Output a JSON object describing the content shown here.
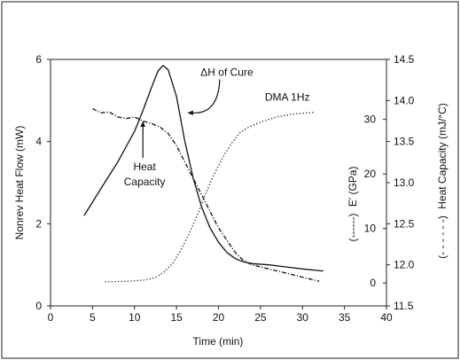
{
  "chart_data": {
    "type": "line",
    "xlabel": "Time (min)",
    "x_ticks": [
      "0",
      "5",
      "10",
      "15",
      "20",
      "25",
      "30",
      "35",
      "40"
    ],
    "xlim": [
      0,
      40
    ],
    "y_left": {
      "label": "Nonrev Heat Flow (mW)",
      "ticks": [
        "0",
        "2",
        "4",
        "6"
      ],
      "lim": [
        0,
        6
      ]
    },
    "y_right_inner": {
      "label_marker": "(------)",
      "label": "E' (GPa)",
      "ticks": [
        "0",
        "10",
        "20",
        "30"
      ],
      "lim": [
        -4.2,
        41
      ]
    },
    "y_right_outer": {
      "label_marker": "(- - - - - -)",
      "label": "Heat Capacity (mJ/°C)",
      "ticks": [
        "11.5",
        "12.0",
        "12.5",
        "13.0",
        "13.5",
        "14.0",
        "14.5"
      ],
      "lim": [
        11.5,
        14.5
      ]
    },
    "grid": false,
    "series": [
      {
        "role": "nonrev-heat-flow",
        "axis": "left",
        "style": "solid",
        "x": [
          4,
          6,
          8,
          10,
          11,
          12,
          12.8,
          13.4,
          14,
          15,
          16,
          17,
          18,
          19,
          20,
          21,
          22,
          23,
          24,
          26,
          28,
          30,
          32.5
        ],
        "y": [
          2.2,
          2.85,
          3.5,
          4.25,
          4.75,
          5.3,
          5.72,
          5.85,
          5.75,
          5.1,
          4.0,
          3.1,
          2.4,
          1.9,
          1.55,
          1.3,
          1.15,
          1.07,
          1.03,
          1.0,
          0.95,
          0.9,
          0.85
        ]
      },
      {
        "role": "dma-storage-modulus",
        "axis": "right_inner",
        "style": "dotted",
        "x": [
          6.5,
          9,
          11,
          12.5,
          13.5,
          14.5,
          15.5,
          16.5,
          17.5,
          18.5,
          19.5,
          20.5,
          21.5,
          22.5,
          23.5,
          25,
          27,
          29,
          31.5
        ],
        "y": [
          0.2,
          0.3,
          0.5,
          1.0,
          2.0,
          3.5,
          6.0,
          9.0,
          12.5,
          16.5,
          20.0,
          23.0,
          25.5,
          27.5,
          28.5,
          29.5,
          30.5,
          31.0,
          31.3
        ]
      },
      {
        "role": "heat-capacity",
        "axis": "right_outer",
        "style": "dash-dot",
        "x": [
          5,
          6,
          7,
          8,
          9,
          10,
          11,
          12,
          13,
          14,
          15,
          16,
          17,
          18,
          19,
          20,
          21,
          22,
          23,
          24,
          26,
          28,
          30,
          32
        ],
        "y": [
          13.9,
          13.85,
          13.86,
          13.8,
          13.78,
          13.8,
          13.75,
          13.72,
          13.68,
          13.6,
          13.45,
          13.25,
          13.05,
          12.85,
          12.65,
          12.45,
          12.3,
          12.15,
          12.05,
          12.0,
          11.95,
          11.9,
          11.85,
          11.8
        ]
      }
    ],
    "annotations": [
      {
        "text": "ΔH of Cure",
        "x": 21,
        "y_left": 5.6,
        "arrow_to": {
          "x": 16.3,
          "y_left": 4.7
        }
      },
      {
        "text": "DMA 1Hz",
        "x": 28.2,
        "y_left": 5.0
      },
      {
        "lines": [
          "Heat",
          "Capacity"
        ],
        "x": 11.2,
        "y_left": 3.3,
        "arrow_to": {
          "x": 11,
          "y_left": 4.5
        }
      }
    ]
  }
}
